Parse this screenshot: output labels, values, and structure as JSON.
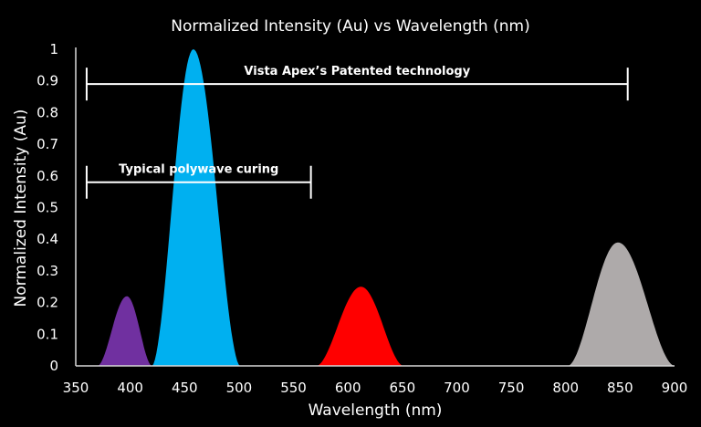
{
  "chart_data": {
    "type": "area",
    "title": "Normalized Intensity (Au) vs Wavelength (nm)",
    "xlabel": "Wavelength (nm)",
    "ylabel": "Normalized Intensity (Au)",
    "xlim": [
      350,
      900
    ],
    "ylim": [
      0,
      1
    ],
    "x_ticks": [
      "350",
      "400",
      "450",
      "500",
      "550",
      "600",
      "650",
      "700",
      "750",
      "800",
      "850",
      "900"
    ],
    "y_ticks": [
      "0",
      "0.1",
      "0.2",
      "0.3",
      "0.4",
      "0.5",
      "0.6",
      "0.7",
      "0.8",
      "0.9",
      "1"
    ],
    "grid": false,
    "series": [
      {
        "color": "#7030a0",
        "start": 370,
        "peak_x": 397,
        "peak_y": 0.22,
        "end": 420
      },
      {
        "color": "#00b0f0",
        "start": 420,
        "peak_x": 458,
        "peak_y": 1.0,
        "end": 501
      },
      {
        "color": "#ff0000",
        "start": 571,
        "peak_x": 612,
        "peak_y": 0.25,
        "end": 651
      },
      {
        "color": "#aeaaaa",
        "start": 802,
        "peak_x": 848,
        "peak_y": 0.39,
        "end": 900
      }
    ],
    "annotations": [
      {
        "text": "Vista Apex’s Patented technology",
        "x_from": 360,
        "x_to": 857,
        "y": 0.89
      },
      {
        "text": "Typical polywave curing",
        "x_from": 360,
        "x_to": 566,
        "y": 0.58
      }
    ]
  }
}
